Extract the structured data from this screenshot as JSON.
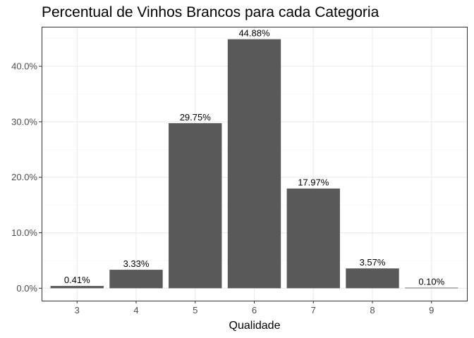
{
  "chart_data": {
    "type": "bar",
    "title": "Percentual de Vinhos Brancos para cada Categoria",
    "xlabel": "Qualidade",
    "ylabel": "",
    "categories": [
      "3",
      "4",
      "5",
      "6",
      "7",
      "8",
      "9"
    ],
    "values": [
      0.41,
      3.33,
      29.75,
      44.88,
      17.97,
      3.57,
      0.1
    ],
    "value_labels": [
      "0.41%",
      "3.33%",
      "29.75%",
      "44.88%",
      "17.97%",
      "3.57%",
      "0.10%"
    ],
    "ylim": [
      -2.244,
      47.124
    ],
    "y_ticks": [
      0,
      10,
      20,
      30,
      40
    ],
    "y_tick_labels": [
      "0.0%",
      "10.0%",
      "20.0%",
      "30.0%",
      "40.0%"
    ],
    "grid": true,
    "bar_color": "#595959",
    "grid_color": "#ebebeb",
    "border_color": "#333333"
  }
}
